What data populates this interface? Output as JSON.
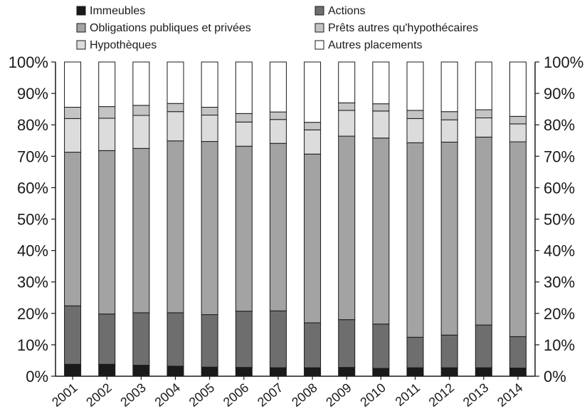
{
  "chart_data": {
    "type": "bar",
    "stacked": true,
    "orientation": "vertical",
    "categories": [
      "2001",
      "2002",
      "2003",
      "2004",
      "2005",
      "2006",
      "2007",
      "2008",
      "2009",
      "2010",
      "2011",
      "2012",
      "2013",
      "2014"
    ],
    "series": [
      {
        "name": "Immeubles",
        "color": "#1a1a1a",
        "values": [
          3.8,
          3.8,
          3.5,
          3.2,
          2.9,
          2.8,
          2.7,
          2.7,
          2.8,
          2.5,
          2.7,
          2.7,
          2.7,
          2.6
        ]
      },
      {
        "name": "Actions",
        "color": "#6e6e6e",
        "values": [
          18.6,
          16.0,
          16.7,
          17.0,
          16.7,
          17.9,
          18.1,
          14.3,
          15.2,
          14.1,
          9.7,
          10.4,
          13.6,
          10.0
        ]
      },
      {
        "name": "Obligations publiques et privées",
        "color": "#a3a3a3",
        "values": [
          48.9,
          52.0,
          52.3,
          54.7,
          55.1,
          52.5,
          53.3,
          53.7,
          58.4,
          59.2,
          61.9,
          61.4,
          59.8,
          62.0
        ]
      },
      {
        "name": "Hypothèques",
        "color": "#dcdcdc",
        "values": [
          10.7,
          10.3,
          10.5,
          9.3,
          8.4,
          7.7,
          7.6,
          7.7,
          8.2,
          8.6,
          7.7,
          7.1,
          6.1,
          5.7
        ]
      },
      {
        "name": "Prêts autres qu'hypothécaires",
        "color": "#c4c4c4",
        "values": [
          3.6,
          3.7,
          3.2,
          2.6,
          2.5,
          2.7,
          2.4,
          2.4,
          2.4,
          2.3,
          2.6,
          2.6,
          2.6,
          2.4
        ]
      },
      {
        "name": "Autres placements",
        "color": "#ffffff",
        "values": [
          14.4,
          14.2,
          13.8,
          13.2,
          14.4,
          16.4,
          15.9,
          19.2,
          13.0,
          13.3,
          15.4,
          15.8,
          15.2,
          17.3
        ]
      }
    ],
    "legend_order": [
      0,
      1,
      2,
      4,
      3,
      5
    ],
    "legend_placement": "top",
    "ylim": [
      0,
      100
    ],
    "yticks": [
      "0%",
      "10%",
      "20%",
      "30%",
      "40%",
      "50%",
      "60%",
      "70%",
      "80%",
      "90%",
      "100%"
    ],
    "y_axis_both_sides": true,
    "grid": false,
    "title": "",
    "xlabel": "",
    "ylabel": ""
  }
}
